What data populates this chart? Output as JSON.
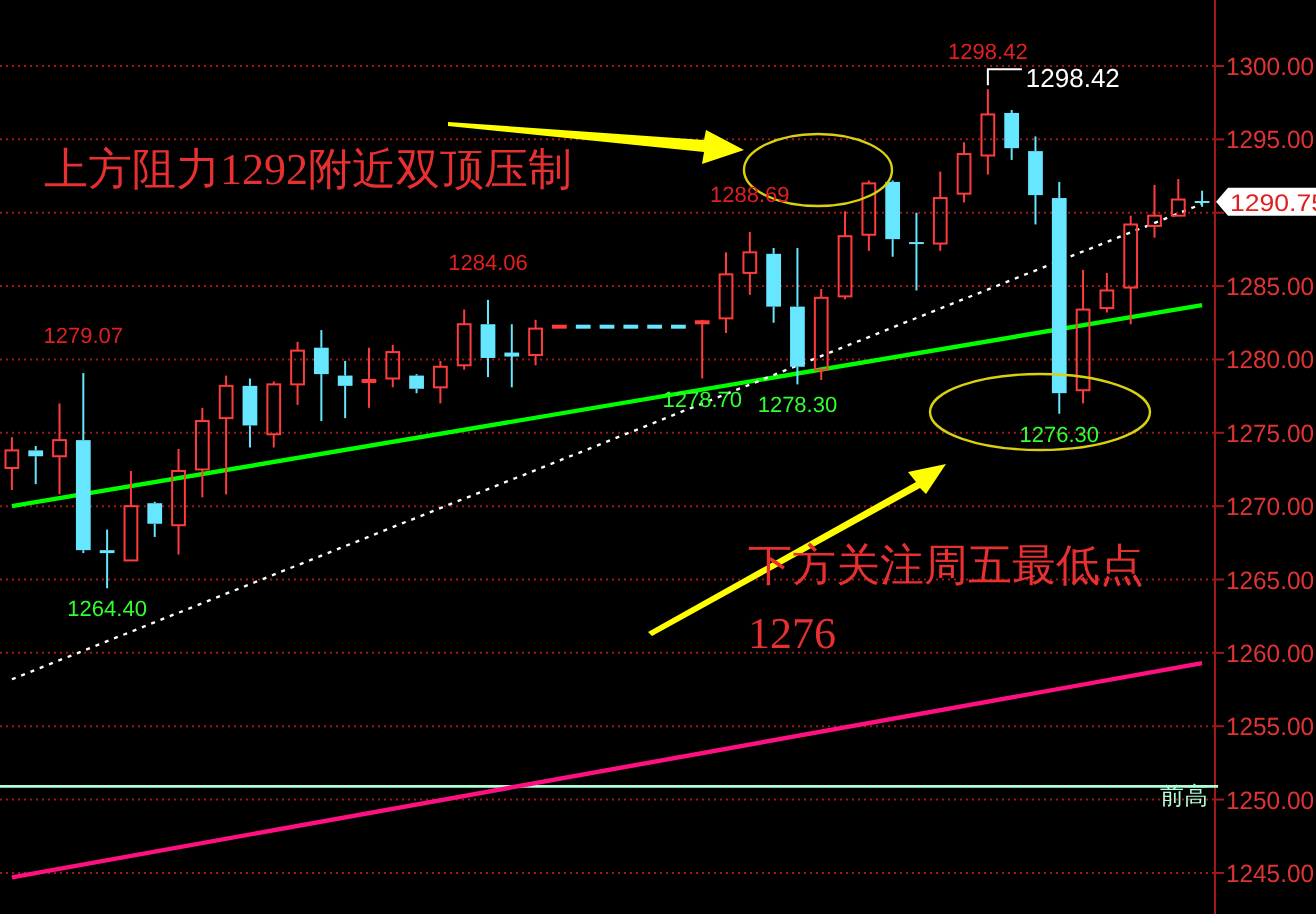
{
  "chart_data": {
    "type": "candlestick",
    "categories": [
      null,
      null,
      null,
      null,
      null,
      null,
      null,
      null,
      null,
      null,
      null,
      null,
      null,
      null,
      null,
      null,
      null,
      null,
      null,
      null,
      null,
      null,
      null,
      null,
      null,
      null,
      null,
      null,
      null,
      null,
      null,
      null,
      null,
      null,
      null,
      null,
      null,
      null,
      null,
      null,
      null,
      null,
      null,
      null,
      null,
      null,
      null,
      null,
      null,
      null,
      null
    ],
    "ohlc": [
      [
        1272.6,
        1274.7,
        1271.1,
        1273.8
      ],
      [
        1273.8,
        1274.1,
        1271.5,
        1273.4
      ],
      [
        1273.4,
        1277.0,
        1270.8,
        1274.5
      ],
      [
        1274.5,
        1279.07,
        1266.8,
        1267.0
      ],
      [
        1267.0,
        1268.4,
        1264.4,
        1266.8
      ],
      [
        1266.3,
        1272.4,
        1266.3,
        1270.0
      ],
      [
        1270.2,
        1270.3,
        1267.9,
        1268.8
      ],
      [
        1268.7,
        1273.9,
        1266.7,
        1272.4
      ],
      [
        1272.5,
        1276.7,
        1270.6,
        1275.8
      ],
      [
        1276.0,
        1278.9,
        1270.8,
        1278.2
      ],
      [
        1278.2,
        1278.7,
        1274.0,
        1275.5
      ],
      [
        1274.9,
        1278.5,
        1274.0,
        1278.3
      ],
      [
        1278.3,
        1281.2,
        1276.9,
        1280.6
      ],
      [
        1280.8,
        1282.0,
        1275.8,
        1279.0
      ],
      [
        1278.9,
        1279.9,
        1276.0,
        1278.2
      ],
      [
        1278.6,
        1280.8,
        1276.7,
        1278.6
      ],
      [
        1278.7,
        1281.0,
        1278.1,
        1280.5
      ],
      [
        1278.9,
        1279.0,
        1277.7,
        1278.0
      ],
      [
        1278.1,
        1279.9,
        1277.0,
        1279.5
      ],
      [
        1279.6,
        1283.4,
        1279.3,
        1282.4
      ],
      [
        1282.4,
        1284.06,
        1278.8,
        1280.1
      ],
      [
        1280.4,
        1282.4,
        1278.1,
        1280.4
      ],
      [
        1280.3,
        1282.7,
        1279.6,
        1282.1
      ],
      [
        1282.3,
        1282.3,
        1282.3,
        1282.3
      ],
      [
        1282.3,
        1282.3,
        1282.3,
        1282.3
      ],
      [
        1282.3,
        1282.3,
        1282.3,
        1282.3
      ],
      [
        1282.3,
        1282.3,
        1282.3,
        1282.3
      ],
      [
        1282.3,
        1282.3,
        1282.3,
        1282.3
      ],
      [
        1282.3,
        1282.3,
        1282.3,
        1282.3
      ],
      [
        1282.5,
        1282.7,
        1278.7,
        1282.6
      ],
      [
        1282.8,
        1287.3,
        1281.8,
        1285.8
      ],
      [
        1285.9,
        1288.69,
        1284.4,
        1287.3
      ],
      [
        1287.2,
        1287.6,
        1282.5,
        1283.6
      ],
      [
        1283.6,
        1287.6,
        1278.3,
        1279.5
      ],
      [
        1279.3,
        1284.8,
        1278.6,
        1284.2
      ],
      [
        1284.3,
        1290.1,
        1284.1,
        1288.4
      ],
      [
        1288.5,
        1292.2,
        1287.4,
        1292.0
      ],
      [
        1292.1,
        1292.2,
        1287.0,
        1288.2
      ],
      [
        1288.0,
        1290.0,
        1284.7,
        1287.9
      ],
      [
        1287.9,
        1292.8,
        1287.4,
        1291.0
      ],
      [
        1291.3,
        1294.8,
        1290.7,
        1294.0
      ],
      [
        1293.9,
        1298.42,
        1292.6,
        1296.7
      ],
      [
        1296.8,
        1297.0,
        1293.6,
        1294.4
      ],
      [
        1294.2,
        1295.2,
        1289.2,
        1291.2
      ],
      [
        1291.0,
        1292.1,
        1276.3,
        1277.7
      ],
      [
        1277.9,
        1286.1,
        1277.0,
        1283.4
      ],
      [
        1283.5,
        1285.9,
        1283.2,
        1284.7
      ],
      [
        1284.9,
        1289.8,
        1282.4,
        1289.2
      ],
      [
        1289.1,
        1291.9,
        1288.3,
        1289.8
      ],
      [
        1289.8,
        1292.3,
        1289.8,
        1290.9
      ],
      [
        1290.8,
        1291.5,
        1290.4,
        1290.75
      ]
    ],
    "colors": [
      "#ff3c3c",
      "#66e6ff",
      "#ff3c3c",
      "#66e6ff",
      "#66e6ff",
      "#ff3c3c",
      "#66e6ff",
      "#ff3c3c",
      "#ff3c3c",
      "#ff3c3c",
      "#66e6ff",
      "#ff3c3c",
      "#ff3c3c",
      "#66e6ff",
      "#66e6ff",
      "#ff3c3c",
      "#ff3c3c",
      "#66e6ff",
      "#ff3c3c",
      "#ff3c3c",
      "#66e6ff",
      "#66e6ff",
      "#ff3c3c",
      "#ff3c3c",
      "#66e6ff",
      "#66e6ff",
      "#66e6ff",
      "#66e6ff",
      "#66e6ff",
      "#ff3c3c",
      "#ff3c3c",
      "#ff3c3c",
      "#66e6ff",
      "#66e6ff",
      "#ff3c3c",
      "#ff3c3c",
      "#ff3c3c",
      "#66e6ff",
      "#66e6ff",
      "#ff3c3c",
      "#ff3c3c",
      "#ff3c3c",
      "#66e6ff",
      "#66e6ff",
      "#66e6ff",
      "#ff3c3c",
      "#ff3c3c",
      "#ff3c3c",
      "#ff3c3c",
      "#ff3c3c",
      "#66e6ff"
    ],
    "series": [
      {
        "type": "line",
        "color": "#00ff00",
        "values": [
          1270.0,
          null,
          null,
          null,
          null,
          null,
          null,
          null,
          null,
          null,
          null,
          null,
          null,
          null,
          null,
          null,
          null,
          null,
          null,
          null,
          null,
          null,
          null,
          null,
          null,
          null,
          null,
          null,
          null,
          null,
          null,
          null,
          null,
          null,
          null,
          null,
          null,
          null,
          null,
          null,
          null,
          null,
          null,
          null,
          null,
          null,
          null,
          null,
          null,
          null,
          1283.7
        ]
      },
      {
        "type": "line",
        "color": "#ff1080",
        "values": [
          1244.7,
          null,
          null,
          null,
          null,
          null,
          null,
          null,
          null,
          null,
          null,
          null,
          null,
          null,
          null,
          null,
          null,
          null,
          null,
          null,
          null,
          null,
          null,
          null,
          null,
          null,
          null,
          null,
          null,
          null,
          null,
          null,
          null,
          null,
          null,
          null,
          null,
          null,
          null,
          null,
          null,
          null,
          null,
          null,
          null,
          null,
          null,
          null,
          null,
          null,
          1259.3
        ]
      },
      {
        "type": "line",
        "color": "#ffffff",
        "line_style": "dotted",
        "values": [
          1258.2,
          null,
          null,
          null,
          null,
          null,
          null,
          null,
          null,
          null,
          null,
          null,
          null,
          null,
          null,
          null,
          null,
          null,
          null,
          null,
          null,
          null,
          null,
          null,
          null,
          null,
          null,
          null,
          null,
          null,
          null,
          null,
          null,
          null,
          null,
          null,
          null,
          null,
          null,
          null,
          null,
          null,
          null,
          null,
          null,
          null,
          null,
          null,
          null,
          null,
          1290.6
        ]
      }
    ],
    "ref_lines": [
      {
        "axis": "y",
        "value": 1250.9,
        "label": "前高",
        "color": "#b0ffd8"
      }
    ],
    "ylim": [
      1242.2,
      1304.5
    ],
    "yticks": [
      {
        "value": 1245,
        "label": "1245.00"
      },
      {
        "value": 1250,
        "label": "1250.00"
      },
      {
        "value": 1255,
        "label": "1255.00"
      },
      {
        "value": 1260,
        "label": "1260.00"
      },
      {
        "value": 1265,
        "label": "1265.00"
      },
      {
        "value": 1270,
        "label": "1270.00"
      },
      {
        "value": 1275,
        "label": "1275.00"
      },
      {
        "value": 1280,
        "label": "1280.00"
      },
      {
        "value": 1285,
        "label": "1285.00"
      },
      {
        "value": 1290,
        "label": null
      },
      {
        "value": 1295,
        "label": "1295.00"
      },
      {
        "value": 1300,
        "label": "1300.00"
      }
    ],
    "grid": "y",
    "tick_labels": "y",
    "annotations": [
      "上方阻力1292附近双顶压制",
      "下方关注周五最低点\n1276",
      "1279.07",
      "1264.40",
      "1284.06",
      "1278.70",
      "1278.30",
      "1288.69",
      "1298.42",
      "1298.42",
      "1276.30",
      "1290.75"
    ]
  }
}
